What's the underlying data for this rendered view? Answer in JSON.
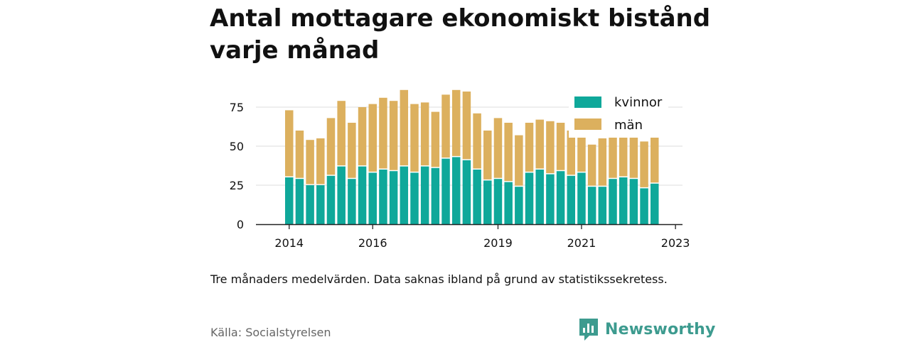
{
  "title": "Antal mottagare ekonomiskt bistånd varje månad",
  "note": "Tre månaders medelvärden. Data saknas ibland på grund av statistikssekretess.",
  "source": "Källa: Socialstyrelsen",
  "brand": {
    "name": "Newsworthy",
    "icon": "newsworthy-logo-icon",
    "color": "#3d9b8f"
  },
  "chart_data": {
    "type": "bar",
    "stacked": true,
    "x_axis": {
      "ticks": [
        "2014",
        "2016",
        "2019",
        "2021",
        "2023"
      ],
      "tick_bar_index": [
        0,
        8,
        20,
        28,
        37
      ]
    },
    "y_axis": {
      "min": 0,
      "max": 85,
      "ticks": [
        0,
        25,
        50,
        75
      ]
    },
    "grid": true,
    "legend_position": "top-right",
    "series": [
      {
        "name": "kvinnor",
        "color": "#0fa89a",
        "values": [
          30,
          29,
          25,
          25,
          31,
          37,
          29,
          37,
          33,
          35,
          34,
          37,
          33,
          37,
          36,
          42,
          43,
          41,
          35,
          28,
          29,
          27,
          24,
          33,
          35,
          32,
          34,
          31,
          33,
          24,
          24,
          29,
          30,
          29,
          23,
          26
        ]
      },
      {
        "name": "män",
        "color": "#dcb05e",
        "values": [
          43,
          31,
          29,
          30,
          37,
          42,
          36,
          38,
          44,
          46,
          45,
          49,
          44,
          41,
          36,
          41,
          43,
          44,
          36,
          32,
          39,
          38,
          33,
          32,
          32,
          34,
          31,
          29,
          26,
          27,
          31,
          30,
          29,
          30,
          30,
          33
        ]
      }
    ]
  }
}
